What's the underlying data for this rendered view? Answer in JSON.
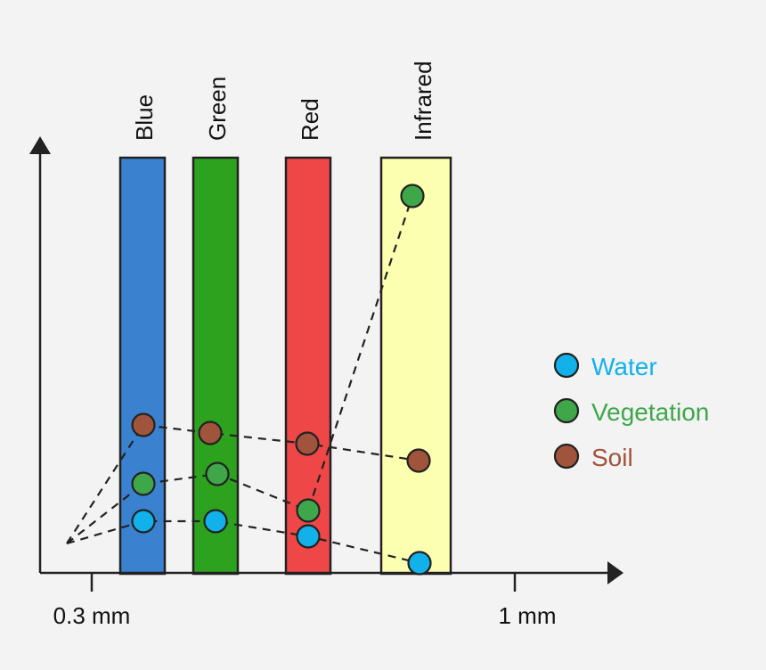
{
  "bands": [
    {
      "label": "Blue",
      "color": "#3a82d0"
    },
    {
      "label": "Green",
      "color": "#2ca21f"
    },
    {
      "label": "Red",
      "color": "#ef4747"
    },
    {
      "label": "Infrared",
      "color": "#fdffb0"
    }
  ],
  "axis": {
    "ticks": [
      "0.3 mm",
      "1 mm"
    ]
  },
  "legend": [
    {
      "label": "Water",
      "color": "#12b1ea"
    },
    {
      "label": "Vegetation",
      "color": "#3fa74a"
    },
    {
      "label": "Soil",
      "color": "#a0543b"
    }
  ],
  "series": [
    {
      "name": "Water",
      "color": "#12b1ea",
      "reflectance": [
        "low",
        "low",
        "lowest",
        "lowest"
      ]
    },
    {
      "name": "Vegetation",
      "color": "#3fa74a",
      "reflectance": [
        "low",
        "low",
        "low",
        "highest"
      ]
    },
    {
      "name": "Soil",
      "color": "#a0543b",
      "reflectance": [
        "moderate",
        "moderate",
        "moderate",
        "moderate"
      ]
    }
  ]
}
